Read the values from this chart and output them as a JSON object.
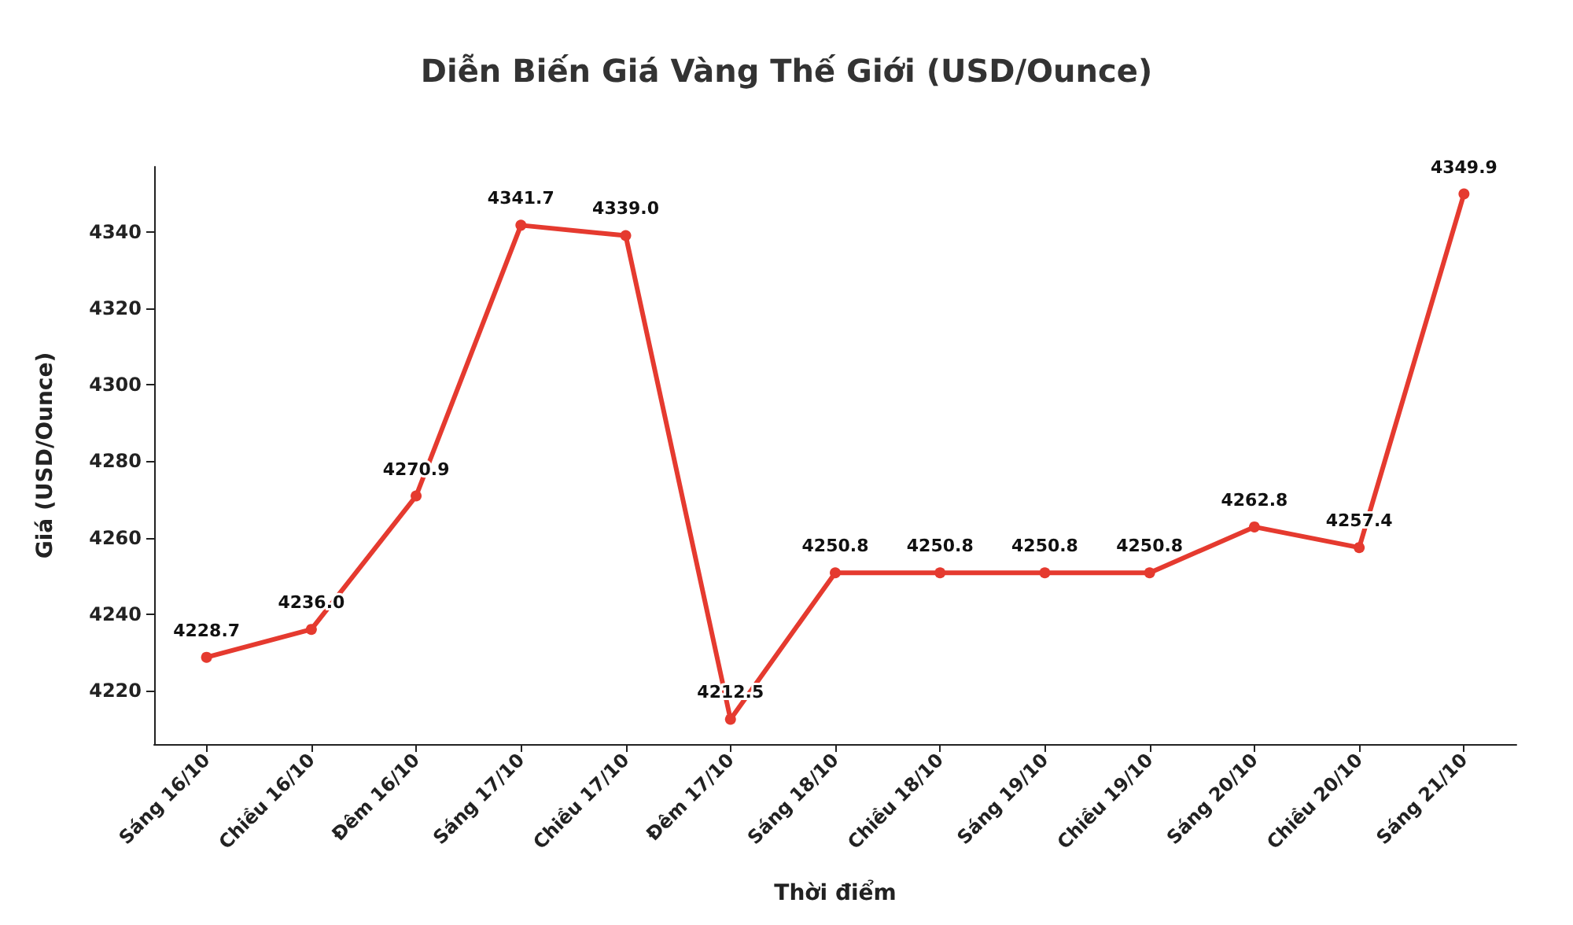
{
  "chart_data": {
    "type": "line",
    "title": "Diễn Biến Giá Vàng Thế Giới (USD/Ounce)",
    "xlabel": "Thời điểm",
    "ylabel": "Giá (USD/Ounce)",
    "categories": [
      "Sáng 16/10",
      "Chiều 16/10",
      "Đêm 16/10",
      "Sáng 17/10",
      "Chiều 17/10",
      "Đêm 17/10",
      "Sáng 18/10",
      "Chiều 18/10",
      "Sáng 19/10",
      "Chiều 19/10",
      "Sáng 20/10",
      "Chiều 20/10",
      "Sáng 21/10"
    ],
    "series": [
      {
        "color": "#e53a2f",
        "values": [
          4228.7,
          4236.0,
          4270.9,
          4341.7,
          4339.0,
          4212.5,
          4250.8,
          4250.8,
          4250.8,
          4250.8,
          4262.8,
          4257.4,
          4349.9
        ],
        "value_labels": [
          "4228.7",
          "4236.0",
          "4270.9",
          "4341.7",
          "4339.0",
          "4212.5",
          "4250.8",
          "4250.8",
          "4250.8",
          "4250.8",
          "4262.8",
          "4257.4",
          "4349.9"
        ]
      }
    ],
    "ylim": [
      4206,
      4357
    ],
    "yticks": [
      4220,
      4240,
      4260,
      4280,
      4300,
      4320,
      4340
    ],
    "grid": false,
    "marker": "circle",
    "line_style": "solid"
  }
}
